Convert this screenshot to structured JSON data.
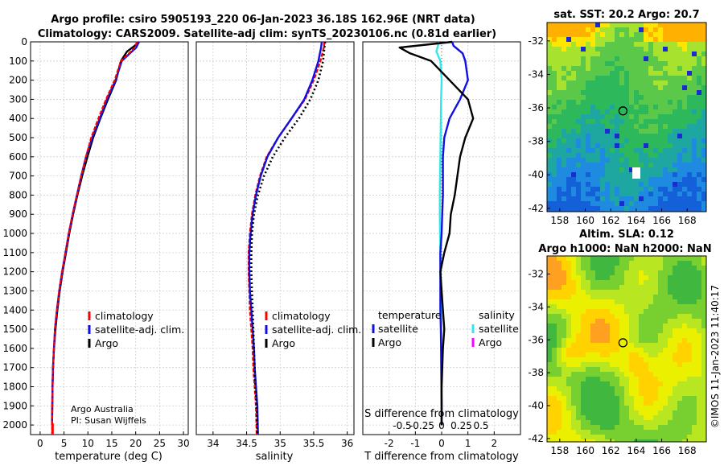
{
  "title": {
    "line1": "Argo profile: csiro 5905193_220 06-Jan-2023 36.18S 162.96E (NRT data)",
    "line2": "Climatology: CARS2009. Satellite-adj clim: synTS_20230106.nc (0.81d earlier)"
  },
  "credit": {
    "org": "Argo Australia",
    "pi": "PI: Susan Wijffels"
  },
  "timestamp": "©IMOS 11-Jan-2023 11:40:17",
  "colors": {
    "climatology": "#ff0000",
    "satellite": "#1010e0",
    "argo": "#000000",
    "sat_s": "#30e8e8",
    "argo_s": "#ff00ff"
  },
  "chart_data": [
    {
      "type": "line",
      "id": "temperature",
      "xlabel": "temperature (deg C)",
      "ylabel": "",
      "xlim": [
        -2,
        31
      ],
      "ylim": [
        0,
        2050
      ],
      "xticks": [
        0,
        5,
        10,
        15,
        20,
        25,
        30
      ],
      "yticks": [
        0,
        100,
        200,
        300,
        400,
        500,
        600,
        700,
        800,
        900,
        1000,
        1100,
        1200,
        1300,
        1400,
        1500,
        1600,
        1700,
        1800,
        1900,
        2000
      ],
      "legend": [
        "climatology",
        "satellite-adj. clim.",
        "Argo"
      ],
      "series": [
        {
          "name": "climatology",
          "x": [
            20.3,
            19.8,
            18.6,
            16.9,
            15.6,
            13.8,
            12.2,
            10.7,
            9.6,
            8.6,
            7.7,
            6.8,
            6.0,
            5.3,
            4.6,
            4.0,
            3.5,
            3.1,
            2.9,
            2.7,
            2.6,
            2.5
          ],
          "y": [
            0,
            30,
            60,
            100,
            200,
            300,
            400,
            500,
            600,
            700,
            800,
            900,
            1000,
            1100,
            1200,
            1300,
            1400,
            1500,
            1600,
            1700,
            1800,
            2050
          ]
        },
        {
          "name": "satellite-adj. clim.",
          "x": [
            20.7,
            20.1,
            18.8,
            17.1,
            15.8,
            14.0,
            12.5,
            10.9,
            9.6,
            8.6,
            7.7,
            6.8,
            6.0,
            5.3,
            4.6,
            4.0,
            3.5,
            3.1,
            2.9,
            2.7,
            2.6,
            2.5
          ],
          "y": [
            0,
            30,
            60,
            100,
            200,
            300,
            400,
            500,
            600,
            700,
            800,
            900,
            1000,
            1100,
            1200,
            1300,
            1400,
            1500,
            1600,
            1700,
            1800,
            2000
          ]
        },
        {
          "name": "Argo",
          "x": [
            20.7,
            19.8,
            18.2,
            16.9,
            15.9,
            14.2,
            12.6,
            11.1,
            9.9,
            8.8,
            7.8,
            6.9,
            6.1,
            5.4,
            4.7,
            4.1,
            3.6,
            3.2,
            2.9,
            2.7,
            2.6,
            2.5
          ],
          "y": [
            0,
            20,
            50,
            100,
            200,
            300,
            400,
            500,
            600,
            700,
            800,
            900,
            1000,
            1100,
            1200,
            1300,
            1400,
            1500,
            1600,
            1700,
            1800,
            2000
          ]
        }
      ]
    },
    {
      "type": "line",
      "id": "salinity",
      "xlabel": "salinity",
      "ylabel": "",
      "xlim": [
        33.75,
        36.1
      ],
      "ylim": [
        0,
        2050
      ],
      "xticks": [
        34,
        34.5,
        35,
        35.5,
        36
      ],
      "legend": [
        "climatology",
        "satellite-adj. clim.",
        "Argo"
      ],
      "series": [
        {
          "name": "climatology",
          "x": [
            35.66,
            35.65,
            35.6,
            35.5,
            35.37,
            35.17,
            34.97,
            34.8,
            34.7,
            34.63,
            34.58,
            34.55,
            34.53,
            34.53,
            34.54,
            34.55,
            34.57,
            34.59,
            34.6,
            34.62,
            34.64,
            34.65
          ],
          "y": [
            0,
            30,
            100,
            200,
            300,
            400,
            500,
            600,
            700,
            800,
            900,
            1000,
            1100,
            1200,
            1300,
            1400,
            1500,
            1600,
            1700,
            1800,
            1900,
            2050
          ]
        },
        {
          "name": "satellite-adj. clim.",
          "x": [
            35.62,
            35.61,
            35.57,
            35.48,
            35.36,
            35.17,
            34.97,
            34.81,
            34.71,
            34.64,
            34.59,
            34.56,
            34.54,
            34.54,
            34.55,
            34.57,
            34.59,
            34.61,
            34.62,
            34.64,
            34.66,
            34.67
          ],
          "y": [
            0,
            30,
            100,
            200,
            300,
            400,
            500,
            600,
            700,
            800,
            900,
            1000,
            1100,
            1200,
            1300,
            1400,
            1500,
            1600,
            1700,
            1800,
            1900,
            2050
          ]
        },
        {
          "name": "Argo",
          "x": [
            35.67,
            35.66,
            35.64,
            35.57,
            35.45,
            35.28,
            35.07,
            34.89,
            34.76,
            34.67,
            34.61,
            34.58,
            34.57,
            34.57,
            34.58,
            34.59,
            34.6,
            34.61,
            34.62,
            34.63,
            34.65,
            34.66
          ],
          "y": [
            0,
            30,
            100,
            200,
            300,
            400,
            500,
            600,
            700,
            800,
            900,
            1000,
            1100,
            1200,
            1300,
            1400,
            1500,
            1600,
            1700,
            1800,
            1900,
            2050
          ]
        }
      ]
    },
    {
      "type": "line",
      "id": "difference",
      "xlabel": "T difference from climatology",
      "xlabel2": "S difference from climatology",
      "xlim": [
        -3,
        3
      ],
      "ylim": [
        0,
        2050
      ],
      "xticks": [
        -2,
        -1,
        0,
        1,
        2
      ],
      "xticklabels": [
        "-2",
        "-1",
        "0",
        "1",
        "2"
      ],
      "xticks2": [
        -1.5,
        -0.75,
        0.75,
        1.5
      ],
      "xticklabels2": [
        "-0.5",
        "-0.25",
        "0.25",
        "0.5"
      ],
      "legend_left_title": "temperature",
      "legend_right_title": "salinity",
      "legend_left": [
        "satellite",
        "Argo"
      ],
      "legend_right": [
        "satellite",
        "Argo"
      ],
      "series": [
        {
          "name": "temperature satellite",
          "x": [
            0.4,
            0.45,
            0.8,
            0.9,
            1.0,
            0.7,
            0.3,
            0.1,
            0.05,
            0.05,
            0.05,
            0.02,
            0.0,
            -0.05,
            -0.05,
            -0.05,
            -0.03,
            -0.02,
            -0.01,
            0.0,
            0.0
          ],
          "y": [
            0,
            20,
            60,
            100,
            200,
            300,
            400,
            500,
            600,
            700,
            800,
            900,
            1000,
            1100,
            1200,
            1400,
            1500,
            1600,
            1800,
            1900,
            2000
          ]
        },
        {
          "name": "temperature Argo",
          "x": [
            0.4,
            -1.6,
            -1.2,
            -0.4,
            0.3,
            1.0,
            1.2,
            0.9,
            0.7,
            0.6,
            0.5,
            0.35,
            0.3,
            0.1,
            -0.05,
            0.05,
            0.1,
            0.05,
            0.0,
            0.0,
            0.0
          ],
          "y": [
            0,
            30,
            60,
            100,
            200,
            300,
            400,
            500,
            600,
            700,
            800,
            900,
            1000,
            1100,
            1200,
            1400,
            1500,
            1600,
            1800,
            1900,
            2000
          ]
        },
        {
          "name": "salinity satellite",
          "x": [
            -0.1,
            -0.2,
            -0.05,
            0.0,
            -0.02,
            -0.03,
            -0.04,
            -0.05,
            -0.06,
            -0.07,
            -0.07,
            -0.06,
            -0.05,
            -0.04,
            -0.03,
            -0.02,
            -0.01,
            -0.01,
            -0.01,
            -0.01
          ],
          "y": [
            0,
            50,
            100,
            200,
            300,
            400,
            500,
            600,
            700,
            800,
            900,
            1000,
            1100,
            1200,
            1300,
            1400,
            1500,
            1600,
            1800,
            2000
          ]
        }
      ]
    },
    {
      "type": "heatmap",
      "id": "sst_map",
      "title": "sat. SST: 20.2 Argo: 20.7",
      "xticks": [
        158,
        160,
        162,
        164,
        166,
        168
      ],
      "yticks": [
        -32,
        -34,
        -36,
        -38,
        -40,
        -42
      ],
      "xlim": [
        157,
        169.5
      ],
      "ylim": [
        -42.2,
        -30.9
      ],
      "marker": {
        "lon": 162.96,
        "lat": -36.18
      }
    },
    {
      "type": "heatmap",
      "id": "sla_map",
      "title": "Altim. SLA: 0.12",
      "subtitle": "Argo h1000: NaN h2000: NaN",
      "xticks": [
        158,
        160,
        162,
        164,
        166,
        168
      ],
      "yticks": [
        -32,
        -34,
        -36,
        -38,
        -40,
        -42
      ],
      "xlim": [
        157,
        169.5
      ],
      "ylim": [
        -42.2,
        -30.9
      ],
      "marker": {
        "lon": 162.96,
        "lat": -36.18
      }
    }
  ]
}
